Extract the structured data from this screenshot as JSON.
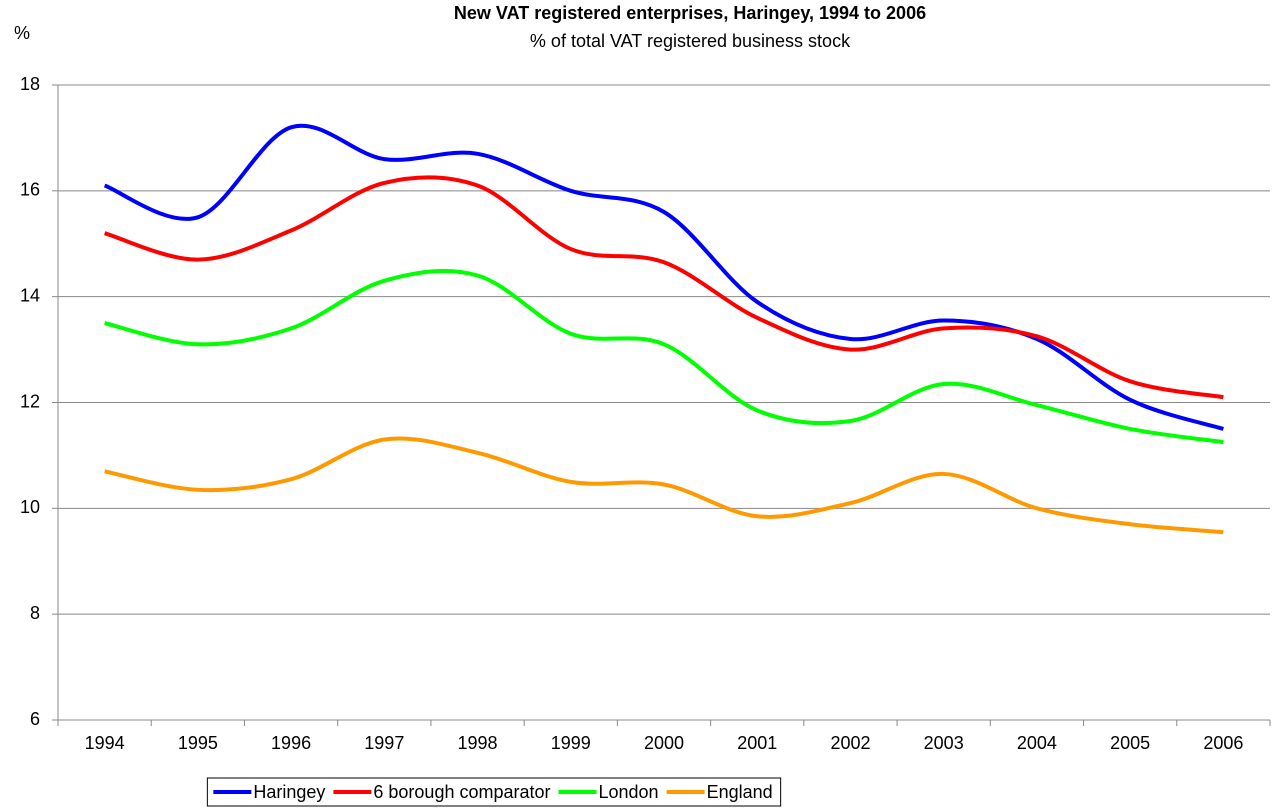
{
  "chart_data": {
    "type": "line",
    "title": "New VAT registered enterprises, Haringey, 1994 to 2006",
    "subtitle": "% of total VAT registered business stock",
    "y_label": "%",
    "categories": [
      "1994",
      "1995",
      "1996",
      "1997",
      "1998",
      "1999",
      "2000",
      "2001",
      "2002",
      "2003",
      "2004",
      "2005",
      "2006"
    ],
    "series": [
      {
        "name": "Haringey",
        "color": "#0000ff",
        "values": [
          16.1,
          15.5,
          17.2,
          16.6,
          16.7,
          16.0,
          15.6,
          13.9,
          13.2,
          13.55,
          13.2,
          12.05,
          11.5
        ]
      },
      {
        "name": "6 borough comparator",
        "color": "#ff0000",
        "values": [
          15.2,
          14.7,
          15.25,
          16.15,
          16.1,
          14.9,
          14.65,
          13.6,
          13.0,
          13.4,
          13.25,
          12.4,
          12.1
        ]
      },
      {
        "name": "London",
        "color": "#00ff00",
        "values": [
          13.5,
          13.1,
          13.4,
          14.3,
          14.4,
          13.3,
          13.1,
          11.85,
          11.65,
          12.35,
          11.95,
          11.5,
          11.25
        ]
      },
      {
        "name": "England",
        "color": "#ff9900",
        "values": [
          10.7,
          10.35,
          10.55,
          11.3,
          11.05,
          10.5,
          10.45,
          9.85,
          10.1,
          10.65,
          10.0,
          9.7,
          9.55
        ]
      }
    ],
    "ylim": [
      6,
      18
    ],
    "yticks": [
      6,
      8,
      10,
      12,
      14,
      16,
      18
    ],
    "grid": true,
    "legend": "bottom"
  }
}
